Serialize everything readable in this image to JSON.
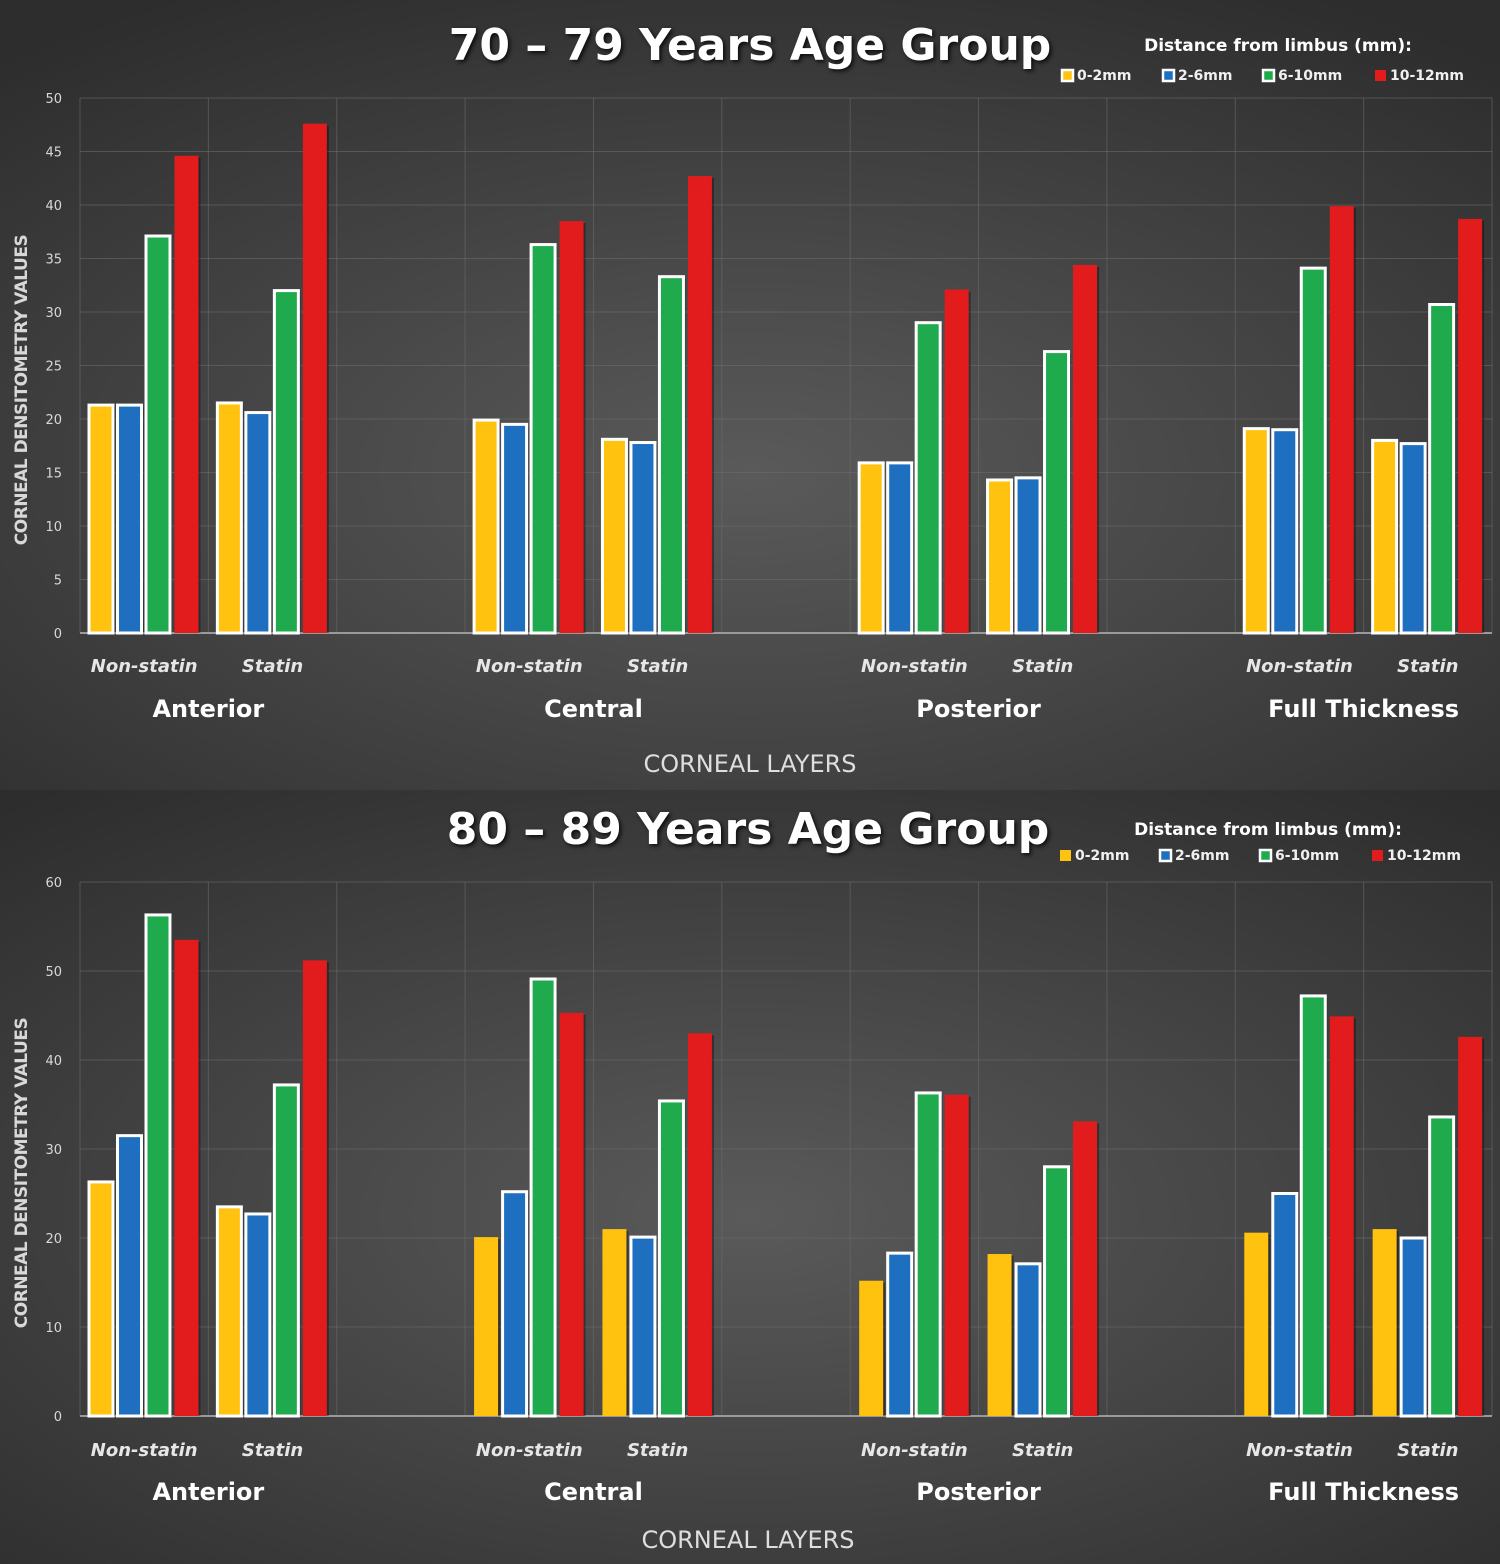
{
  "chart_data": [
    {
      "type": "bar",
      "title": "70 – 79 Years Age Group",
      "xlabel": "CORNEAL LAYERS",
      "ylabel": "CORNEAL DENSITOMETRY VALUES",
      "ylim": [
        0,
        50
      ],
      "yticks": [
        0,
        5,
        10,
        15,
        20,
        25,
        30,
        35,
        40,
        45,
        50
      ],
      "grid": true,
      "legend": {
        "title": "Distance from limbus (mm):",
        "position": "top-right",
        "entries": [
          "0-2mm",
          "2-6mm",
          "6-10mm",
          "10-12mm"
        ]
      },
      "groups": [
        "Anterior",
        "Central",
        "Posterior",
        "Full Thickness"
      ],
      "subgroups": [
        "Non-statin",
        "Statin"
      ],
      "categories": [
        "Anterior Non-statin",
        "Anterior Statin",
        "Central Non-statin",
        "Central Statin",
        "Posterior Non-statin",
        "Posterior Statin",
        "Full Thickness Non-statin",
        "Full Thickness Statin"
      ],
      "series": [
        {
          "name": "0-2mm",
          "color": "#ffc20e",
          "bordered": [
            true,
            true,
            true,
            true,
            true,
            true,
            true,
            true
          ],
          "values": [
            21.3,
            21.5,
            19.9,
            18.1,
            15.9,
            14.3,
            19.1,
            18.0
          ]
        },
        {
          "name": "2-6mm",
          "color": "#1f6fc0",
          "bordered": [
            true,
            true,
            true,
            true,
            true,
            true,
            true,
            true
          ],
          "values": [
            21.3,
            20.6,
            19.5,
            17.8,
            15.9,
            14.5,
            19.0,
            17.7
          ]
        },
        {
          "name": "6-10mm",
          "color": "#1faa4e",
          "bordered": [
            true,
            true,
            true,
            true,
            true,
            true,
            true,
            true
          ],
          "values": [
            37.1,
            32.0,
            36.3,
            33.3,
            29.0,
            26.3,
            34.1,
            30.7
          ]
        },
        {
          "name": "10-12mm",
          "color": "#e21c1c",
          "bordered": [
            false,
            false,
            false,
            false,
            false,
            false,
            false,
            false
          ],
          "values": [
            44.6,
            47.6,
            38.5,
            42.7,
            32.1,
            34.4,
            39.9,
            38.7
          ]
        }
      ]
    },
    {
      "type": "bar",
      "title": "80 – 89 Years Age Group",
      "xlabel": "CORNEAL LAYERS",
      "ylabel": "CORNEAL DENSITOMETRY VALUES",
      "ylim": [
        0,
        60
      ],
      "yticks": [
        0,
        10,
        20,
        30,
        40,
        50,
        60
      ],
      "grid": true,
      "legend": {
        "title": "Distance from limbus (mm):",
        "position": "top-right",
        "entries": [
          "0-2mm",
          "2-6mm",
          "6-10mm",
          "10-12mm"
        ]
      },
      "groups": [
        "Anterior",
        "Central",
        "Posterior",
        "Full Thickness"
      ],
      "subgroups": [
        "Non-statin",
        "Statin"
      ],
      "categories": [
        "Anterior Non-statin",
        "Anterior Statin",
        "Central Non-statin",
        "Central Statin",
        "Posterior Non-statin",
        "Posterior Statin",
        "Full Thickness Non-statin",
        "Full Thickness Statin"
      ],
      "series": [
        {
          "name": "0-2mm",
          "color": "#ffc20e",
          "bordered": [
            true,
            true,
            false,
            false,
            false,
            false,
            false,
            false
          ],
          "values": [
            26.3,
            23.5,
            20.1,
            21.0,
            15.2,
            18.2,
            20.6,
            21.0
          ]
        },
        {
          "name": "2-6mm",
          "color": "#1f6fc0",
          "bordered": [
            true,
            true,
            true,
            true,
            true,
            true,
            true,
            true
          ],
          "values": [
            31.5,
            22.7,
            25.2,
            20.1,
            18.3,
            17.1,
            25.0,
            20.0
          ]
        },
        {
          "name": "6-10mm",
          "color": "#1faa4e",
          "bordered": [
            true,
            true,
            true,
            true,
            true,
            true,
            true,
            true
          ],
          "values": [
            56.3,
            37.2,
            49.1,
            35.4,
            36.3,
            28.0,
            47.2,
            33.6
          ]
        },
        {
          "name": "10-12mm",
          "color": "#e21c1c",
          "bordered": [
            false,
            false,
            false,
            false,
            false,
            false,
            false,
            false
          ],
          "values": [
            53.5,
            51.2,
            45.3,
            43.0,
            36.1,
            33.1,
            44.9,
            42.6
          ]
        }
      ]
    }
  ]
}
